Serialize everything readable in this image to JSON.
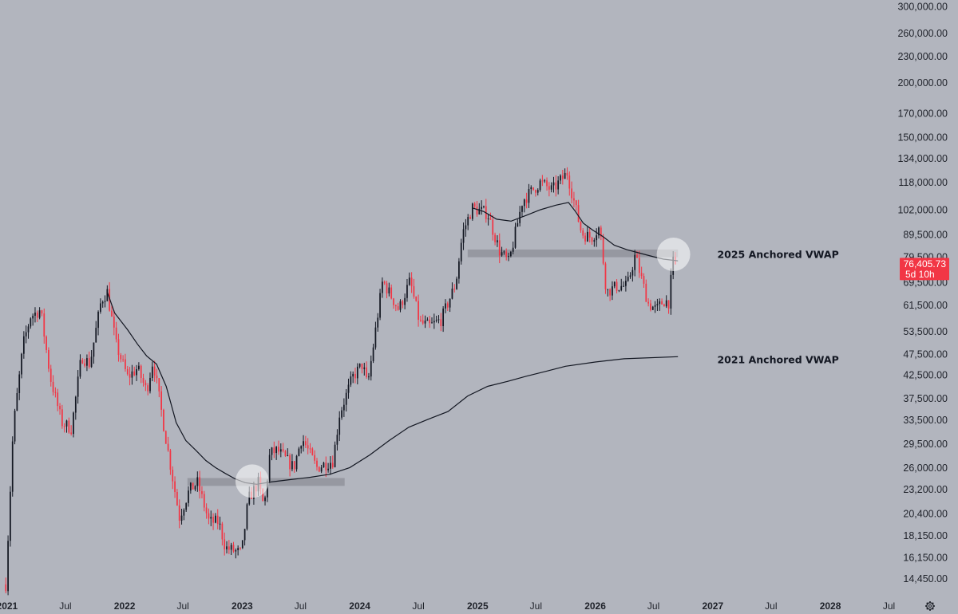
{
  "chart_data": {
    "type": "candlestick",
    "scale": "log",
    "ylim": [
      13300,
      310000
    ],
    "xlim": [
      "2020-12-10",
      "2028-08-01"
    ],
    "y_ticks": [
      "300,000.00",
      "260,000.00",
      "230,000.00",
      "200,000.00",
      "170,000.00",
      "150,000.00",
      "134,000.00",
      "118,000.00",
      "102,000.00",
      "89,500.00",
      "79,500.00",
      "69,500.00",
      "61,500.00",
      "53,500.00",
      "47,500.00",
      "42,500.00",
      "37,500.00",
      "33,500.00",
      "29,500.00",
      "26,000.00",
      "23,200.00",
      "20,400.00",
      "18,150.00",
      "16,150.00",
      "14,450.00"
    ],
    "x_ticks": [
      {
        "label": "2021",
        "date": "2021-01-01",
        "year": true
      },
      {
        "label": "Jul",
        "date": "2021-07-01",
        "year": false
      },
      {
        "label": "2022",
        "date": "2022-01-01",
        "year": true
      },
      {
        "label": "Jul",
        "date": "2022-07-01",
        "year": false
      },
      {
        "label": "2023",
        "date": "2023-01-01",
        "year": true
      },
      {
        "label": "Jul",
        "date": "2023-07-01",
        "year": false
      },
      {
        "label": "2024",
        "date": "2024-01-01",
        "year": true
      },
      {
        "label": "Jul",
        "date": "2024-07-01",
        "year": false
      },
      {
        "label": "2025",
        "date": "2025-01-01",
        "year": true
      },
      {
        "label": "Jul",
        "date": "2025-07-01",
        "year": false
      },
      {
        "label": "2026",
        "date": "2026-01-01",
        "year": true
      },
      {
        "label": "Jul",
        "date": "2026-07-01",
        "year": false
      },
      {
        "label": "2027",
        "date": "2027-01-01",
        "year": true
      },
      {
        "label": "Jul",
        "date": "2027-07-01",
        "year": false
      },
      {
        "label": "2028",
        "date": "2028-01-01",
        "year": true
      },
      {
        "label": "Jul",
        "date": "2028-07-01",
        "year": false
      }
    ],
    "price_anchors": [
      [
        "2020-12-28",
        14000
      ],
      [
        "2021-01-04",
        18000
      ],
      [
        "2021-01-20",
        32000
      ],
      [
        "2021-02-20",
        50000
      ],
      [
        "2021-03-15",
        58000
      ],
      [
        "2021-04-15",
        60000
      ],
      [
        "2021-05-15",
        42000
      ],
      [
        "2021-06-20",
        33000
      ],
      [
        "2021-07-20",
        32000
      ],
      [
        "2021-08-20",
        47000
      ],
      [
        "2021-09-15",
        45000
      ],
      [
        "2021-10-20",
        63000
      ],
      [
        "2021-11-08",
        66000
      ],
      [
        "2021-12-05",
        50000
      ],
      [
        "2022-01-10",
        42000
      ],
      [
        "2022-02-10",
        44000
      ],
      [
        "2022-03-10",
        39000
      ],
      [
        "2022-03-30",
        46000
      ],
      [
        "2022-05-10",
        30000
      ],
      [
        "2022-06-20",
        20000
      ],
      [
        "2022-07-20",
        23000
      ],
      [
        "2022-08-15",
        24000
      ],
      [
        "2022-09-20",
        19500
      ],
      [
        "2022-10-20",
        19500
      ],
      [
        "2022-11-10",
        17000
      ],
      [
        "2022-12-30",
        16500
      ],
      [
        "2023-01-20",
        22000
      ],
      [
        "2023-02-20",
        24000
      ],
      [
        "2023-03-10",
        21000
      ],
      [
        "2023-03-28",
        28000
      ],
      [
        "2023-04-20",
        28500
      ],
      [
        "2023-06-10",
        26000
      ],
      [
        "2023-07-05",
        30500
      ],
      [
        "2023-08-20",
        26000
      ],
      [
        "2023-10-10",
        27000
      ],
      [
        "2023-10-30",
        34500
      ],
      [
        "2023-12-10",
        42000
      ],
      [
        "2024-01-10",
        45000
      ],
      [
        "2024-01-25",
        40000
      ],
      [
        "2024-03-12",
        70000
      ],
      [
        "2024-05-01",
        60000
      ],
      [
        "2024-06-05",
        70000
      ],
      [
        "2024-07-05",
        56000
      ],
      [
        "2024-08-05",
        55000
      ],
      [
        "2024-09-10",
        57000
      ],
      [
        "2024-10-25",
        69000
      ],
      [
        "2024-11-15",
        90000
      ],
      [
        "2024-12-15",
        103000
      ],
      [
        "2025-02-01",
        100000
      ],
      [
        "2025-03-10",
        82000
      ],
      [
        "2025-04-08",
        77000
      ],
      [
        "2025-05-20",
        107000
      ],
      [
        "2025-07-15",
        118000
      ],
      [
        "2025-08-20",
        113000
      ],
      [
        "2025-10-06",
        124000
      ],
      [
        "2025-11-20",
        90000
      ],
      [
        "2025-12-20",
        88000
      ],
      [
        "2026-01-15",
        93000
      ],
      [
        "2026-02-05",
        66000
      ],
      [
        "2026-03-10",
        68000
      ],
      [
        "2026-04-10",
        68000
      ],
      [
        "2026-05-05",
        80000
      ],
      [
        "2026-06-15",
        62000
      ],
      [
        "2026-07-10",
        60000
      ],
      [
        "2026-08-01",
        63000
      ],
      [
        "2026-08-20",
        62500
      ],
      [
        "2026-08-27",
        76000
      ],
      [
        "2026-09-03",
        78000
      ],
      [
        "2026-09-10",
        76405.73
      ]
    ],
    "series": [
      {
        "name": "2025 Anchored VWAP",
        "points": [
          [
            "2024-12-15",
            103000
          ],
          [
            "2025-01-20",
            101000
          ],
          [
            "2025-03-01",
            97000
          ],
          [
            "2025-04-15",
            96000
          ],
          [
            "2025-06-01",
            99000
          ],
          [
            "2025-07-15",
            102000
          ],
          [
            "2025-09-01",
            104500
          ],
          [
            "2025-10-10",
            106000
          ],
          [
            "2025-11-01",
            101000
          ],
          [
            "2025-11-25",
            95000
          ],
          [
            "2025-12-25",
            91500
          ],
          [
            "2026-01-25",
            88500
          ],
          [
            "2026-03-01",
            84500
          ],
          [
            "2026-04-10",
            82500
          ],
          [
            "2026-05-20",
            81000
          ],
          [
            "2026-07-01",
            79500
          ],
          [
            "2026-08-01",
            78500
          ],
          [
            "2026-09-15",
            77800
          ]
        ]
      },
      {
        "name": "2021 Anchored VWAP",
        "points": [
          [
            "2021-11-08",
            66000
          ],
          [
            "2021-12-01",
            59000
          ],
          [
            "2022-01-10",
            54000
          ],
          [
            "2022-02-10",
            50000
          ],
          [
            "2022-03-10",
            47000
          ],
          [
            "2022-04-10",
            45000
          ],
          [
            "2022-05-10",
            40000
          ],
          [
            "2022-06-10",
            33000
          ],
          [
            "2022-07-10",
            30000
          ],
          [
            "2022-08-10",
            28500
          ],
          [
            "2022-09-10",
            27000
          ],
          [
            "2022-10-10",
            26000
          ],
          [
            "2022-11-10",
            25200
          ],
          [
            "2022-12-10",
            24500
          ],
          [
            "2023-01-10",
            24000
          ],
          [
            "2023-02-15",
            23800
          ],
          [
            "2023-04-01",
            24100
          ],
          [
            "2023-06-01",
            24400
          ],
          [
            "2023-08-01",
            24700
          ],
          [
            "2023-10-01",
            25100
          ],
          [
            "2023-12-01",
            26000
          ],
          [
            "2024-02-01",
            27800
          ],
          [
            "2024-04-01",
            30000
          ],
          [
            "2024-06-01",
            32200
          ],
          [
            "2024-08-01",
            33600
          ],
          [
            "2024-10-01",
            35000
          ],
          [
            "2024-12-01",
            38000
          ],
          [
            "2025-02-01",
            40000
          ],
          [
            "2025-04-01",
            41000
          ],
          [
            "2025-06-01",
            42200
          ],
          [
            "2025-08-01",
            43300
          ],
          [
            "2025-10-01",
            44500
          ],
          [
            "2026-01-01",
            45500
          ],
          [
            "2026-04-01",
            46300
          ],
          [
            "2026-09-15",
            46800
          ]
        ]
      }
    ],
    "zones": [
      {
        "start": "2022-07-15",
        "end": "2023-11-15",
        "low": 23600,
        "high": 24600,
        "color": "#8c8f97"
      },
      {
        "start": "2024-12-01",
        "end": "2026-09-15",
        "low": 79300,
        "high": 82600,
        "color": "#8c8f97"
      }
    ],
    "highlights": [
      {
        "date": "2023-02-01",
        "value": 24200
      },
      {
        "date": "2026-09-01",
        "value": 80500
      }
    ],
    "annotations": [
      {
        "text": "2025 Anchored VWAP",
        "date": "2027-01-15",
        "value": 80400
      },
      {
        "text": "2021 Anchored VWAP",
        "date": "2027-01-15",
        "value": 46000
      }
    ],
    "last_price": {
      "value": 76405.73,
      "label": "76,405.73",
      "countdown": "5d 10h",
      "color": "#f23645"
    },
    "colors": {
      "up": "#131722",
      "down": "#f23645",
      "vwap": "#131722",
      "background": "#b2b5be"
    },
    "grid": false,
    "settings_icon": "gear-icon"
  }
}
